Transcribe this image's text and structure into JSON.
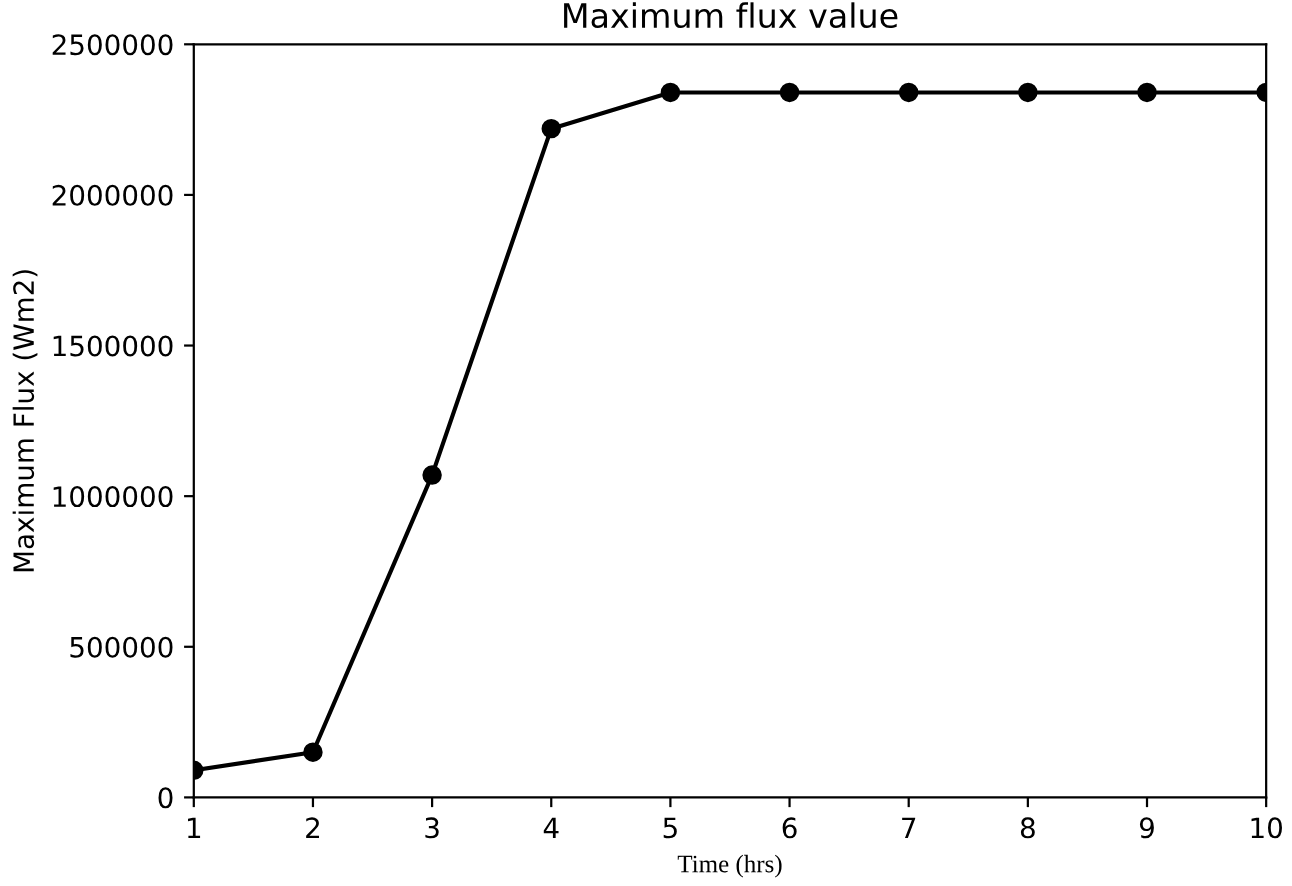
{
  "chart_data": {
    "type": "line",
    "title": "Maximum flux value",
    "xlabel": "Time (hrs)",
    "ylabel": "Maximum Flux (Wm2)",
    "x": [
      1,
      2,
      3,
      4,
      5,
      6,
      7,
      8,
      9,
      10
    ],
    "series": [
      {
        "color": "#000000",
        "values": [
          90000,
          150000,
          1070000,
          2220000,
          2340000,
          2340000,
          2340000,
          2340000,
          2340000,
          2340000
        ]
      }
    ],
    "xlim": [
      1,
      10
    ],
    "xticks": [
      1,
      2,
      3,
      4,
      5,
      6,
      7,
      8,
      9,
      10
    ],
    "ylim": [
      0,
      2500000
    ],
    "yticks": [
      0,
      500000,
      1000000,
      1500000,
      2000000,
      2500000
    ],
    "grid": false,
    "marker": "circle",
    "line_style": "solid"
  }
}
